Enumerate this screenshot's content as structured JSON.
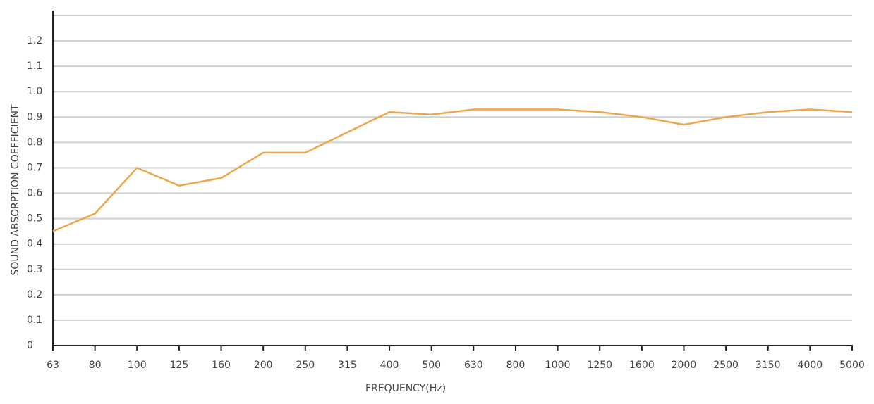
{
  "chart_data": {
    "type": "line",
    "x_label": "FREQUENCY(Hz)",
    "y_label": "SOUND ABSORPTION COEFFICIENT",
    "categories": [
      "63",
      "80",
      "100",
      "125",
      "160",
      "200",
      "250",
      "315",
      "400",
      "500",
      "630",
      "800",
      "1000",
      "1250",
      "1600",
      "2000",
      "2500",
      "3150",
      "4000",
      "5000"
    ],
    "values": [
      0.45,
      0.52,
      0.7,
      0.63,
      0.66,
      0.76,
      0.76,
      0.84,
      0.92,
      0.91,
      0.93,
      0.93,
      0.93,
      0.92,
      0.9,
      0.87,
      0.9,
      0.92,
      0.93,
      0.92
    ],
    "color": "#f0a54a",
    "ylim": [
      0,
      1.3
    ],
    "yticks": [
      0,
      0.1,
      0.2,
      0.3,
      0.4,
      0.5,
      0.6,
      0.7,
      0.8,
      0.9,
      {
        "value": 1,
        "label": "1.0"
      },
      1.1,
      1.2
    ],
    "grid": true
  }
}
